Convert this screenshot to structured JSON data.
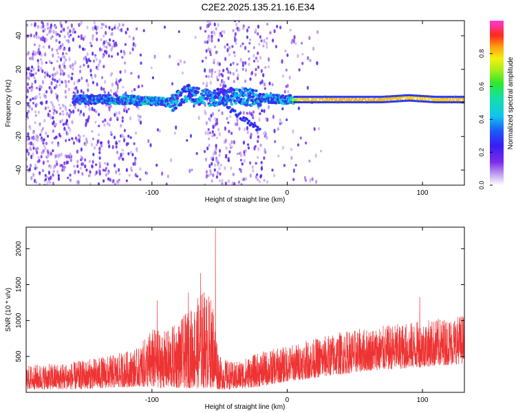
{
  "title": "C2E2.2025.135.21.16.E34",
  "chart_data": [
    {
      "type": "heatmap",
      "xlabel": "Height of straight line (km)",
      "ylabel": "Frequency (Hz)",
      "xlim": [
        -193,
        131
      ],
      "ylim": [
        -49,
        49
      ],
      "xticks": [
        -100,
        0,
        100
      ],
      "yticks": [
        -40,
        -20,
        0,
        20,
        40
      ],
      "colorbar": {
        "label": "Normalized spectral amplitude",
        "range": [
          0,
          1
        ],
        "ticks": [
          "0.0",
          "0.2",
          "0.4",
          "0.6",
          "0.8"
        ]
      },
      "ridge": [
        {
          "x": -158,
          "freq": 2,
          "amp": 0.35
        },
        {
          "x": -140,
          "freq": 2,
          "amp": 0.4
        },
        {
          "x": -120,
          "freq": 2,
          "amp": 0.45
        },
        {
          "x": -100,
          "freq": 1,
          "amp": 0.45
        },
        {
          "x": -85,
          "freq": 0,
          "amp": 0.45
        },
        {
          "x": -75,
          "freq": 6,
          "amp": 0.4
        },
        {
          "x": -65,
          "freq": 4,
          "amp": 0.4
        },
        {
          "x": -55,
          "freq": 3,
          "amp": 0.4
        },
        {
          "x": -40,
          "freq": 4,
          "amp": 0.4
        },
        {
          "x": -20,
          "freq": 3,
          "amp": 0.45
        },
        {
          "x": 0,
          "freq": 2,
          "amp": 0.45
        },
        {
          "x": 10,
          "freq": 2,
          "amp": 0.8
        },
        {
          "x": 40,
          "freq": 2,
          "amp": 0.82
        },
        {
          "x": 70,
          "freq": 2,
          "amp": 0.82
        },
        {
          "x": 90,
          "freq": 3,
          "amp": 0.8
        },
        {
          "x": 110,
          "freq": 2,
          "amp": 0.8
        },
        {
          "x": 131,
          "freq": 2,
          "amp": 0.82
        }
      ]
    },
    {
      "type": "line",
      "xlabel": "Height of straight line (km)",
      "ylabel": "SNR (10 * v/v)",
      "xlim": [
        -193,
        131
      ],
      "ylim": [
        0,
        2300
      ],
      "xticks": [
        -100,
        0,
        100
      ],
      "yticks": [
        500,
        1000,
        1500,
        2000
      ],
      "color": "#ee3333",
      "envelope": [
        {
          "x": -193,
          "low": 40,
          "high": 380
        },
        {
          "x": -160,
          "low": 40,
          "high": 420
        },
        {
          "x": -130,
          "low": 60,
          "high": 520
        },
        {
          "x": -110,
          "low": 80,
          "high": 620
        },
        {
          "x": -100,
          "low": 60,
          "high": 900
        },
        {
          "x": -90,
          "low": 60,
          "high": 850
        },
        {
          "x": -80,
          "low": 60,
          "high": 1000
        },
        {
          "x": -70,
          "low": 60,
          "high": 1200
        },
        {
          "x": -62,
          "low": 60,
          "high": 1450
        },
        {
          "x": -55,
          "low": 60,
          "high": 1300
        },
        {
          "x": -50,
          "low": 40,
          "high": 500
        },
        {
          "x": -40,
          "low": 40,
          "high": 420
        },
        {
          "x": -20,
          "low": 80,
          "high": 560
        },
        {
          "x": 0,
          "low": 150,
          "high": 650
        },
        {
          "x": 20,
          "low": 200,
          "high": 750
        },
        {
          "x": 40,
          "low": 250,
          "high": 850
        },
        {
          "x": 60,
          "low": 300,
          "high": 900
        },
        {
          "x": 80,
          "low": 320,
          "high": 950
        },
        {
          "x": 100,
          "low": 350,
          "high": 1000
        },
        {
          "x": 120,
          "low": 380,
          "high": 1050
        },
        {
          "x": 131,
          "low": 400,
          "high": 1100
        }
      ],
      "peaks": [
        {
          "x": -96,
          "y": 1280
        },
        {
          "x": -73,
          "y": 1390
        },
        {
          "x": -64,
          "y": 1660
        },
        {
          "x": -53,
          "y": 2290
        },
        {
          "x": 98,
          "y": 1330
        }
      ]
    }
  ]
}
